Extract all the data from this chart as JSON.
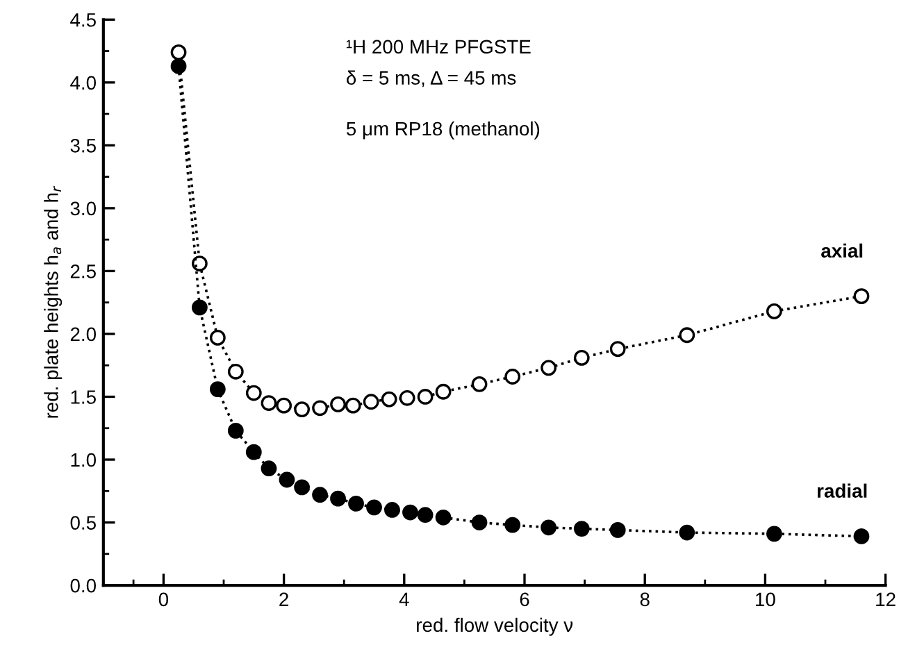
{
  "chart_data": {
    "type": "line",
    "xlabel": "red. flow velocity ν",
    "ylabel": "red. plate heights h$_{a}$ and h$_{r}$",
    "annotations": [
      "¹H 200 MHz PFGSTE",
      "δ = 5 ms, Δ = 45 ms",
      "5 μm RP18 (methanol)"
    ],
    "series": [
      {
        "name": "axial",
        "color": "#ffffff",
        "x": [
          0.25,
          0.6,
          0.9,
          1.2,
          1.5,
          1.75,
          2.0,
          2.3,
          2.6,
          2.9,
          3.15,
          3.45,
          3.75,
          4.05,
          4.35,
          4.65,
          5.25,
          5.8,
          6.4,
          6.95,
          7.55,
          8.7,
          10.15,
          11.6
        ],
        "values": [
          4.24,
          2.56,
          1.97,
          1.7,
          1.53,
          1.45,
          1.43,
          1.4,
          1.41,
          1.44,
          1.43,
          1.46,
          1.48,
          1.49,
          1.5,
          1.54,
          1.6,
          1.66,
          1.73,
          1.81,
          1.88,
          1.99,
          2.18,
          2.3
        ]
      },
      {
        "name": "radial",
        "color": "#000000",
        "x": [
          0.25,
          0.6,
          0.9,
          1.2,
          1.5,
          1.75,
          2.05,
          2.3,
          2.6,
          2.9,
          3.2,
          3.5,
          3.8,
          4.1,
          4.35,
          4.65,
          5.25,
          5.8,
          6.4,
          6.95,
          7.55,
          8.7,
          10.15,
          11.6
        ],
        "values": [
          4.13,
          2.21,
          1.56,
          1.23,
          1.06,
          0.93,
          0.84,
          0.78,
          0.72,
          0.69,
          0.65,
          0.62,
          0.6,
          0.58,
          0.56,
          0.54,
          0.5,
          0.48,
          0.46,
          0.45,
          0.44,
          0.42,
          0.41,
          0.39
        ]
      }
    ],
    "xlim": [
      -1,
      12
    ],
    "xticks": [
      0,
      2,
      4,
      6,
      8,
      10,
      12
    ],
    "ylim": [
      0,
      4.5
    ],
    "yticks": [
      {
        "value": 0,
        "label": "0.0"
      },
      0.5,
      {
        "value": 1,
        "label": "1.0"
      },
      1.5,
      {
        "value": 2,
        "label": "2.0"
      },
      2.5,
      {
        "value": 3,
        "label": "3.0"
      },
      3.5,
      {
        "value": 4,
        "label": "4.0"
      },
      4.5
    ],
    "marker": "circle",
    "line_style": "dotted",
    "grid": false,
    "legend": false
  }
}
